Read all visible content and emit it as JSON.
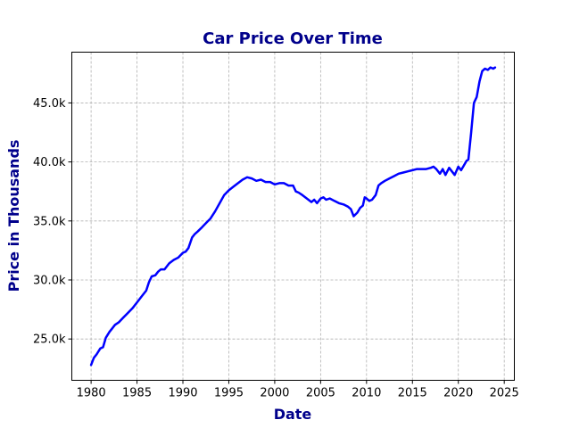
{
  "chart_data": {
    "type": "line",
    "title": "Car Price Over Time",
    "xlabel": "Date",
    "ylabel": "Price in Thousands",
    "xlim": [
      1977.9,
      2026.1
    ],
    "ylim": [
      21500,
      49300
    ],
    "xticks": [
      1980,
      1985,
      1990,
      1995,
      2000,
      2005,
      2010,
      2015,
      2020,
      2025
    ],
    "xtick_labels": [
      "1980",
      "1985",
      "1990",
      "1995",
      "2000",
      "2005",
      "2010",
      "2015",
      "2020",
      "2025"
    ],
    "yticks": [
      25000,
      30000,
      35000,
      40000,
      45000
    ],
    "ytick_labels": [
      "25.0k",
      "30.0k",
      "35.0k",
      "40.0k",
      "45.0k"
    ],
    "grid": true,
    "series": [
      {
        "color": "#0000ff",
        "x": [
          1980.0,
          1980.3,
          1980.6,
          1981.0,
          1981.3,
          1981.6,
          1982.0,
          1982.3,
          1982.6,
          1983.0,
          1983.5,
          1984.0,
          1984.5,
          1985.0,
          1985.5,
          1986.0,
          1986.3,
          1986.6,
          1987.0,
          1987.3,
          1987.6,
          1988.0,
          1988.5,
          1989.0,
          1989.5,
          1990.0,
          1990.3,
          1990.6,
          1991.0,
          1991.3,
          1991.6,
          1992.0,
          1992.5,
          1993.0,
          1993.5,
          1994.0,
          1994.5,
          1995.0,
          1995.5,
          1996.0,
          1996.5,
          1997.0,
          1997.5,
          1998.0,
          1998.5,
          1999.0,
          1999.5,
          2000.0,
          2000.5,
          2001.0,
          2001.5,
          2002.0,
          2002.3,
          2002.6,
          2003.0,
          2003.5,
          2004.0,
          2004.3,
          2004.6,
          2005.0,
          2005.3,
          2005.6,
          2006.0,
          2006.5,
          2007.0,
          2007.5,
          2008.0,
          2008.3,
          2008.6,
          2009.0,
          2009.3,
          2009.6,
          2009.8,
          2010.0,
          2010.3,
          2010.6,
          2011.0,
          2011.3,
          2011.6,
          2012.0,
          2012.5,
          2013.0,
          2013.5,
          2014.0,
          2014.5,
          2015.0,
          2015.5,
          2016.0,
          2016.5,
          2017.0,
          2017.3,
          2017.6,
          2018.0,
          2018.3,
          2018.6,
          2019.0,
          2019.3,
          2019.6,
          2020.0,
          2020.3,
          2020.6,
          2020.9,
          2021.1,
          2021.4,
          2021.7,
          2022.0,
          2022.3,
          2022.6,
          2022.9,
          2023.2,
          2023.5,
          2023.8,
          2024.0
        ],
        "values": [
          22800,
          23400,
          23700,
          24200,
          24300,
          25100,
          25600,
          25900,
          26200,
          26400,
          26800,
          27200,
          27600,
          28100,
          28600,
          29100,
          29800,
          30300,
          30400,
          30700,
          30900,
          30900,
          31400,
          31700,
          31900,
          32300,
          32400,
          32700,
          33600,
          33900,
          34100,
          34400,
          34800,
          35200,
          35800,
          36500,
          37200,
          37600,
          37900,
          38200,
          38500,
          38700,
          38600,
          38400,
          38500,
          38300,
          38300,
          38100,
          38200,
          38200,
          38000,
          38000,
          37500,
          37400,
          37200,
          36900,
          36600,
          36800,
          36500,
          36900,
          37000,
          36800,
          36900,
          36700,
          36500,
          36400,
          36200,
          36000,
          35400,
          35700,
          36100,
          36300,
          37000,
          36900,
          36700,
          36800,
          37200,
          38000,
          38200,
          38400,
          38600,
          38800,
          39000,
          39100,
          39200,
          39300,
          39400,
          39400,
          39400,
          39500,
          39600,
          39400,
          39000,
          39400,
          38900,
          39500,
          39200,
          38900,
          39600,
          39300,
          39700,
          40100,
          40200,
          42500,
          45000,
          45500,
          46800,
          47700,
          47900,
          47800,
          48000,
          47900,
          48000
        ]
      }
    ]
  }
}
